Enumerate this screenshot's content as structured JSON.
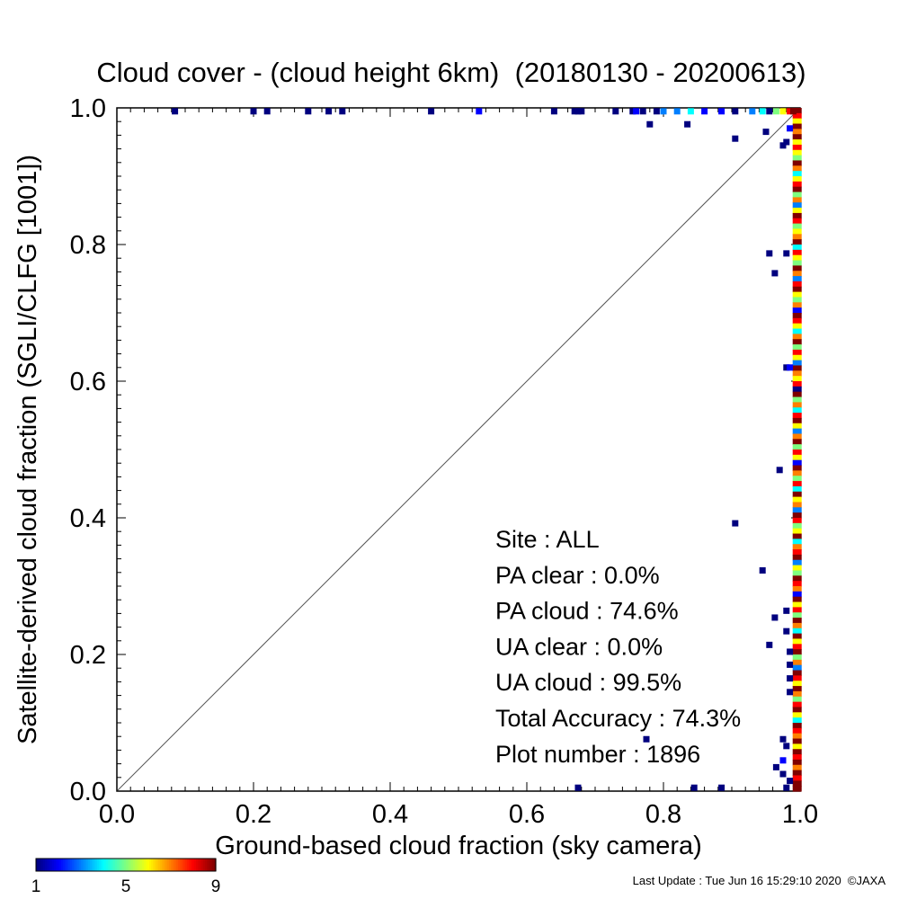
{
  "chart_data": {
    "type": "heatmap",
    "title": "Cloud cover - (cloud height 6km)  (20180130 - 20200613)",
    "xlabel": "Ground-based cloud fraction (sky camera)",
    "ylabel": "Satellite-derived cloud fraction (SGLI/CLFG [1001])",
    "xlim": [
      0,
      1
    ],
    "ylim": [
      0,
      1
    ],
    "x_ticks": [
      "0.0",
      "0.2",
      "0.4",
      "0.6",
      "0.8",
      "1.0"
    ],
    "y_ticks": [
      "0.0",
      "0.2",
      "0.4",
      "0.6",
      "0.8",
      "1.0"
    ],
    "reference_line": "y = x",
    "grid": false,
    "colorbar": {
      "ticks": [
        "1",
        "5",
        "9"
      ],
      "range": [
        1,
        9
      ],
      "colors": [
        "#00007f",
        "#0000ff",
        "#007fff",
        "#00ffff",
        "#7fff7f",
        "#ffff00",
        "#ff7f00",
        "#ff0000",
        "#7f0000"
      ]
    },
    "stats": [
      "Site : ALL",
      "PA clear :   0.0%",
      "PA cloud :  74.6%",
      "UA clear :   0.0%",
      "UA cloud :  99.5%",
      "Total Accuracy :  74.3%",
      "Plot number :      1896"
    ],
    "points": [
      {
        "x": 0.085,
        "y": 0.995,
        "c": 1
      },
      {
        "x": 0.2,
        "y": 0.995,
        "c": 1
      },
      {
        "x": 0.22,
        "y": 0.995,
        "c": 1
      },
      {
        "x": 0.28,
        "y": 0.995,
        "c": 1
      },
      {
        "x": 0.31,
        "y": 0.995,
        "c": 1
      },
      {
        "x": 0.33,
        "y": 0.995,
        "c": 1
      },
      {
        "x": 0.46,
        "y": 0.995,
        "c": 1
      },
      {
        "x": 0.53,
        "y": 0.995,
        "c": 2
      },
      {
        "x": 0.64,
        "y": 0.995,
        "c": 1
      },
      {
        "x": 0.67,
        "y": 0.995,
        "c": 1
      },
      {
        "x": 0.675,
        "y": 0.995,
        "c": 1
      },
      {
        "x": 0.68,
        "y": 0.995,
        "c": 1
      },
      {
        "x": 0.73,
        "y": 0.995,
        "c": 1
      },
      {
        "x": 0.755,
        "y": 0.995,
        "c": 1
      },
      {
        "x": 0.76,
        "y": 0.995,
        "c": 2
      },
      {
        "x": 0.77,
        "y": 0.995,
        "c": 1
      },
      {
        "x": 0.79,
        "y": 0.995,
        "c": 1
      },
      {
        "x": 0.8,
        "y": 0.995,
        "c": 3
      },
      {
        "x": 0.82,
        "y": 0.995,
        "c": 3
      },
      {
        "x": 0.84,
        "y": 0.995,
        "c": 4
      },
      {
        "x": 0.86,
        "y": 0.995,
        "c": 2
      },
      {
        "x": 0.885,
        "y": 0.995,
        "c": 2
      },
      {
        "x": 0.905,
        "y": 0.995,
        "c": 1
      },
      {
        "x": 0.93,
        "y": 0.995,
        "c": 3
      },
      {
        "x": 0.945,
        "y": 0.995,
        "c": 4
      },
      {
        "x": 0.955,
        "y": 0.995,
        "c": 1
      },
      {
        "x": 0.965,
        "y": 0.995,
        "c": 5
      },
      {
        "x": 0.975,
        "y": 0.995,
        "c": 6
      },
      {
        "x": 0.985,
        "y": 0.995,
        "c": 8
      },
      {
        "x": 0.99,
        "y": 0.995,
        "c": 9
      },
      {
        "x": 0.78,
        "y": 0.976,
        "c": 1
      },
      {
        "x": 0.835,
        "y": 0.976,
        "c": 1
      },
      {
        "x": 0.905,
        "y": 0.955,
        "c": 1
      },
      {
        "x": 0.95,
        "y": 0.965,
        "c": 1
      },
      {
        "x": 0.975,
        "y": 0.945,
        "c": 1
      },
      {
        "x": 0.985,
        "y": 0.97,
        "c": 2
      },
      {
        "x": 0.98,
        "y": 0.95,
        "c": 1
      },
      {
        "x": 0.955,
        "y": 0.787,
        "c": 1
      },
      {
        "x": 0.963,
        "y": 0.758,
        "c": 1
      },
      {
        "x": 0.98,
        "y": 0.787,
        "c": 1
      },
      {
        "x": 0.98,
        "y": 0.62,
        "c": 1
      },
      {
        "x": 0.985,
        "y": 0.62,
        "c": 2
      },
      {
        "x": 0.97,
        "y": 0.47,
        "c": 1
      },
      {
        "x": 0.905,
        "y": 0.392,
        "c": 1
      },
      {
        "x": 0.945,
        "y": 0.323,
        "c": 1
      },
      {
        "x": 0.963,
        "y": 0.254,
        "c": 1
      },
      {
        "x": 0.98,
        "y": 0.264,
        "c": 1
      },
      {
        "x": 0.955,
        "y": 0.214,
        "c": 1
      },
      {
        "x": 0.98,
        "y": 0.234,
        "c": 1
      },
      {
        "x": 0.985,
        "y": 0.204,
        "c": 1
      },
      {
        "x": 0.985,
        "y": 0.185,
        "c": 1
      },
      {
        "x": 0.985,
        "y": 0.165,
        "c": 1
      },
      {
        "x": 0.985,
        "y": 0.145,
        "c": 1
      },
      {
        "x": 0.775,
        "y": 0.076,
        "c": 1
      },
      {
        "x": 0.975,
        "y": 0.076,
        "c": 1
      },
      {
        "x": 0.98,
        "y": 0.066,
        "c": 1
      },
      {
        "x": 0.975,
        "y": 0.045,
        "c": 2
      },
      {
        "x": 0.965,
        "y": 0.035,
        "c": 1
      },
      {
        "x": 0.975,
        "y": 0.025,
        "c": 1
      },
      {
        "x": 0.985,
        "y": 0.015,
        "c": 1
      },
      {
        "x": 0.98,
        "y": 0.005,
        "c": 1
      },
      {
        "x": 0.675,
        "y": 0.005,
        "c": 1
      },
      {
        "x": 0.845,
        "y": 0.005,
        "c": 1
      },
      {
        "x": 0.885,
        "y": 0.005,
        "c": 1
      }
    ],
    "edge_column_x": 0.997,
    "edge_column": [
      9,
      8,
      6,
      9,
      7,
      9,
      6,
      8,
      6,
      5,
      9,
      7,
      4,
      6,
      8,
      9,
      5,
      7,
      3,
      6,
      9,
      8,
      5,
      6,
      7,
      9,
      4,
      8,
      6,
      5,
      9,
      7,
      3,
      8,
      9,
      6,
      5,
      7,
      2,
      9,
      8,
      6,
      4,
      7,
      9,
      5,
      8,
      6,
      3,
      9,
      7,
      6,
      8,
      1,
      9,
      5,
      7,
      4,
      8,
      9,
      6,
      3,
      7,
      9,
      5,
      8,
      6,
      2,
      9,
      7,
      5,
      8,
      4,
      9,
      6,
      7,
      3,
      9,
      8,
      5,
      6,
      9,
      4,
      7,
      8,
      9,
      3,
      6,
      5,
      9,
      8,
      7,
      2,
      9,
      6,
      8,
      5,
      9,
      7,
      4,
      9,
      6,
      8,
      9,
      5,
      7,
      3,
      9,
      8,
      6,
      9,
      7,
      5,
      8,
      9,
      6,
      4,
      9,
      8,
      7,
      9,
      6,
      9,
      8,
      9,
      7,
      9,
      8,
      9,
      9
    ]
  },
  "footer": {
    "timestamp": "Last Update : Tue Jun 16 15:29:10 2020  ©JAXA"
  }
}
